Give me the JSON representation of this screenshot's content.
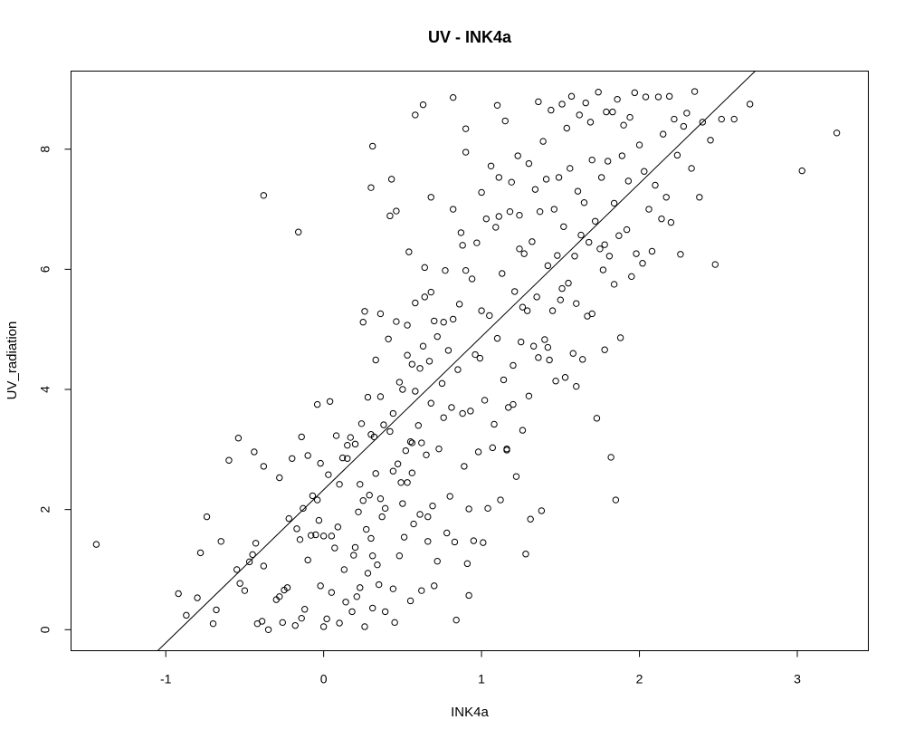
{
  "chart_data": {
    "type": "scatter",
    "title": "UV - INK4a",
    "xlabel": "INK4a",
    "ylabel": "UV_radiation",
    "xlim": [
      -1.6,
      3.45
    ],
    "ylim": [
      -0.35,
      9.3
    ],
    "xticks": [
      -1,
      0,
      1,
      2,
      3
    ],
    "yticks": [
      0,
      2,
      4,
      6,
      8
    ],
    "grid": false,
    "legend": "none",
    "fit_line": {
      "intercept": 2.33,
      "slope": 2.55
    },
    "points": [
      [
        -1.44,
        1.42
      ],
      [
        -0.92,
        0.6
      ],
      [
        -0.87,
        0.24
      ],
      [
        -0.8,
        0.53
      ],
      [
        -0.78,
        1.28
      ],
      [
        -0.74,
        1.88
      ],
      [
        -0.7,
        0.1
      ],
      [
        -0.68,
        0.33
      ],
      [
        -0.65,
        1.47
      ],
      [
        -0.6,
        2.82
      ],
      [
        -0.54,
        3.19
      ],
      [
        -0.55,
        1.0
      ],
      [
        -0.53,
        0.77
      ],
      [
        -0.5,
        0.65
      ],
      [
        -0.47,
        1.13
      ],
      [
        -0.45,
        1.25
      ],
      [
        -0.44,
        2.96
      ],
      [
        -0.43,
        1.44
      ],
      [
        -0.42,
        0.1
      ],
      [
        -0.39,
        0.14
      ],
      [
        -0.38,
        2.72
      ],
      [
        -0.38,
        1.06
      ],
      [
        -0.38,
        7.23
      ],
      [
        -0.35,
        0.0
      ],
      [
        -0.3,
        0.5
      ],
      [
        -0.28,
        0.55
      ],
      [
        -0.28,
        2.53
      ],
      [
        -0.26,
        0.12
      ],
      [
        -0.25,
        0.66
      ],
      [
        -0.23,
        0.7
      ],
      [
        -0.22,
        1.85
      ],
      [
        -0.2,
        2.85
      ],
      [
        -0.18,
        0.07
      ],
      [
        -0.17,
        1.68
      ],
      [
        -0.15,
        1.5
      ],
      [
        -0.14,
        0.19
      ],
      [
        -0.14,
        3.21
      ],
      [
        -0.13,
        2.02
      ],
      [
        -0.12,
        0.34
      ],
      [
        -0.1,
        2.9
      ],
      [
        -0.1,
        1.16
      ],
      [
        -0.08,
        1.57
      ],
      [
        -0.07,
        2.23
      ],
      [
        -0.05,
        1.58
      ],
      [
        -0.04,
        2.16
      ],
      [
        -0.03,
        1.82
      ],
      [
        -0.02,
        2.77
      ],
      [
        -0.02,
        0.73
      ],
      [
        0.0,
        0.05
      ],
      [
        0.0,
        1.56
      ],
      [
        0.02,
        0.18
      ],
      [
        0.03,
        2.58
      ],
      [
        0.04,
        3.8
      ],
      [
        0.05,
        0.62
      ],
      [
        0.05,
        1.56
      ],
      [
        0.07,
        1.36
      ],
      [
        0.08,
        3.23
      ],
      [
        0.09,
        1.71
      ],
      [
        0.1,
        0.11
      ],
      [
        0.1,
        2.42
      ],
      [
        0.12,
        2.86
      ],
      [
        0.13,
        1.0
      ],
      [
        0.14,
        0.46
      ],
      [
        0.15,
        3.07
      ],
      [
        0.15,
        2.85
      ],
      [
        0.17,
        3.2
      ],
      [
        0.18,
        0.3
      ],
      [
        0.19,
        1.24
      ],
      [
        0.2,
        3.09
      ],
      [
        0.2,
        1.37
      ],
      [
        0.21,
        0.55
      ],
      [
        0.22,
        1.96
      ],
      [
        0.23,
        0.7
      ],
      [
        0.23,
        2.42
      ],
      [
        0.24,
        3.43
      ],
      [
        0.25,
        5.12
      ],
      [
        0.25,
        2.15
      ],
      [
        0.26,
        5.3
      ],
      [
        0.27,
        1.67
      ],
      [
        0.28,
        3.87
      ],
      [
        0.28,
        0.94
      ],
      [
        0.29,
        2.24
      ],
      [
        0.3,
        1.52
      ],
      [
        0.3,
        3.25
      ],
      [
        0.31,
        0.36
      ],
      [
        0.31,
        1.23
      ],
      [
        0.32,
        3.21
      ],
      [
        0.33,
        2.6
      ],
      [
        0.34,
        1.08
      ],
      [
        0.35,
        0.75
      ],
      [
        0.36,
        2.18
      ],
      [
        0.37,
        1.88
      ],
      [
        0.38,
        3.41
      ],
      [
        0.39,
        2.02
      ],
      [
        0.41,
        4.84
      ],
      [
        0.42,
        3.3
      ],
      [
        0.42,
        6.89
      ],
      [
        0.43,
        7.5
      ],
      [
        0.44,
        0.68
      ],
      [
        0.44,
        3.6
      ],
      [
        0.45,
        0.12
      ],
      [
        0.46,
        5.13
      ],
      [
        0.47,
        2.76
      ],
      [
        0.48,
        1.23
      ],
      [
        0.48,
        4.12
      ],
      [
        0.5,
        4.0
      ],
      [
        0.5,
        2.1
      ],
      [
        0.51,
        1.54
      ],
      [
        0.52,
        2.98
      ],
      [
        0.53,
        2.45
      ],
      [
        0.53,
        4.57
      ],
      [
        0.54,
        6.29
      ],
      [
        0.55,
        0.48
      ],
      [
        0.55,
        3.13
      ],
      [
        0.56,
        4.42
      ],
      [
        0.56,
        2.61
      ],
      [
        0.57,
        1.76
      ],
      [
        0.58,
        3.97
      ],
      [
        0.58,
        5.44
      ],
      [
        0.6,
        3.4
      ],
      [
        0.61,
        1.92
      ],
      [
        0.61,
        4.35
      ],
      [
        0.62,
        3.11
      ],
      [
        0.62,
        0.65
      ],
      [
        0.63,
        4.72
      ],
      [
        0.64,
        5.54
      ],
      [
        0.65,
        2.91
      ],
      [
        0.66,
        1.47
      ],
      [
        0.66,
        1.88
      ],
      [
        0.67,
        4.47
      ],
      [
        0.68,
        5.62
      ],
      [
        0.69,
        2.06
      ],
      [
        0.7,
        0.73
      ],
      [
        0.72,
        4.88
      ],
      [
        0.72,
        1.14
      ],
      [
        0.73,
        3.01
      ],
      [
        0.75,
        4.1
      ],
      [
        0.76,
        3.53
      ],
      [
        0.77,
        5.98
      ],
      [
        0.78,
        1.61
      ],
      [
        0.79,
        4.65
      ],
      [
        0.8,
        2.22
      ],
      [
        0.81,
        3.7
      ],
      [
        0.82,
        5.17
      ],
      [
        0.82,
        7.0
      ],
      [
        0.83,
        1.46
      ],
      [
        0.84,
        0.16
      ],
      [
        0.85,
        4.33
      ],
      [
        0.86,
        5.42
      ],
      [
        0.87,
        6.61
      ],
      [
        0.88,
        3.6
      ],
      [
        0.89,
        2.72
      ],
      [
        0.9,
        7.95
      ],
      [
        0.9,
        5.98
      ],
      [
        0.91,
        1.1
      ],
      [
        0.92,
        0.57
      ],
      [
        0.93,
        3.64
      ],
      [
        0.94,
        5.84
      ],
      [
        0.95,
        1.48
      ],
      [
        0.96,
        4.58
      ],
      [
        0.97,
        6.44
      ],
      [
        0.98,
        2.96
      ],
      [
        0.99,
        4.52
      ],
      [
        1.0,
        5.31
      ],
      [
        1.01,
        1.45
      ],
      [
        1.02,
        3.82
      ],
      [
        1.03,
        6.84
      ],
      [
        1.04,
        2.02
      ],
      [
        1.05,
        5.23
      ],
      [
        1.06,
        7.72
      ],
      [
        1.07,
        3.03
      ],
      [
        1.08,
        3.42
      ],
      [
        1.09,
        6.7
      ],
      [
        1.1,
        4.85
      ],
      [
        1.11,
        7.53
      ],
      [
        1.12,
        2.16
      ],
      [
        1.13,
        5.93
      ],
      [
        1.14,
        4.16
      ],
      [
        1.15,
        8.47
      ],
      [
        1.16,
        3.01
      ],
      [
        1.17,
        3.7
      ],
      [
        1.18,
        6.96
      ],
      [
        1.19,
        7.45
      ],
      [
        1.2,
        4.4
      ],
      [
        1.21,
        5.63
      ],
      [
        1.22,
        2.55
      ],
      [
        1.23,
        7.89
      ],
      [
        1.24,
        6.34
      ],
      [
        1.25,
        4.79
      ],
      [
        1.26,
        3.32
      ],
      [
        1.27,
        6.26
      ],
      [
        1.28,
        1.26
      ],
      [
        1.29,
        5.31
      ],
      [
        1.3,
        7.76
      ],
      [
        1.31,
        1.84
      ],
      [
        1.32,
        6.46
      ],
      [
        1.33,
        4.72
      ],
      [
        1.34,
        7.33
      ],
      [
        1.35,
        5.54
      ],
      [
        1.36,
        4.53
      ],
      [
        1.37,
        6.96
      ],
      [
        1.38,
        1.98
      ],
      [
        1.39,
        8.13
      ],
      [
        1.4,
        4.83
      ],
      [
        1.41,
        7.5
      ],
      [
        1.42,
        6.06
      ],
      [
        1.43,
        4.49
      ],
      [
        1.44,
        8.65
      ],
      [
        1.45,
        5.31
      ],
      [
        1.46,
        7.0
      ],
      [
        1.47,
        4.14
      ],
      [
        1.48,
        6.23
      ],
      [
        1.49,
        7.53
      ],
      [
        1.5,
        5.49
      ],
      [
        1.51,
        8.75
      ],
      [
        1.52,
        6.71
      ],
      [
        1.53,
        4.2
      ],
      [
        1.54,
        8.35
      ],
      [
        1.55,
        5.77
      ],
      [
        1.56,
        7.68
      ],
      [
        1.57,
        8.88
      ],
      [
        1.58,
        4.6
      ],
      [
        1.59,
        6.22
      ],
      [
        1.6,
        5.43
      ],
      [
        1.61,
        7.3
      ],
      [
        1.62,
        8.57
      ],
      [
        1.63,
        6.57
      ],
      [
        1.64,
        4.5
      ],
      [
        1.65,
        7.11
      ],
      [
        1.66,
        8.77
      ],
      [
        1.67,
        5.22
      ],
      [
        1.68,
        6.45
      ],
      [
        1.69,
        8.45
      ],
      [
        1.7,
        7.82
      ],
      [
        1.72,
        6.8
      ],
      [
        1.73,
        3.52
      ],
      [
        1.74,
        8.95
      ],
      [
        1.75,
        6.34
      ],
      [
        1.76,
        7.53
      ],
      [
        1.77,
        5.99
      ],
      [
        1.78,
        4.66
      ],
      [
        1.79,
        8.62
      ],
      [
        1.8,
        7.8
      ],
      [
        1.81,
        6.22
      ],
      [
        1.82,
        2.87
      ],
      [
        1.83,
        8.62
      ],
      [
        1.84,
        7.1
      ],
      [
        1.85,
        2.16
      ],
      [
        1.86,
        8.83
      ],
      [
        1.87,
        6.56
      ],
      [
        1.88,
        4.86
      ],
      [
        1.89,
        7.89
      ],
      [
        1.9,
        8.4
      ],
      [
        1.92,
        6.66
      ],
      [
        1.93,
        7.47
      ],
      [
        1.94,
        8.53
      ],
      [
        1.95,
        5.88
      ],
      [
        1.97,
        8.94
      ],
      [
        1.98,
        6.26
      ],
      [
        2.0,
        8.07
      ],
      [
        2.02,
        6.1
      ],
      [
        2.03,
        7.63
      ],
      [
        2.04,
        8.87
      ],
      [
        2.06,
        7.0
      ],
      [
        2.08,
        6.3
      ],
      [
        2.1,
        7.4
      ],
      [
        2.12,
        8.87
      ],
      [
        2.14,
        6.84
      ],
      [
        2.15,
        8.25
      ],
      [
        2.17,
        7.2
      ],
      [
        2.19,
        8.88
      ],
      [
        2.2,
        6.78
      ],
      [
        2.22,
        8.5
      ],
      [
        2.24,
        7.9
      ],
      [
        2.26,
        6.25
      ],
      [
        2.28,
        8.38
      ],
      [
        2.3,
        8.6
      ],
      [
        2.33,
        7.68
      ],
      [
        2.35,
        8.96
      ],
      [
        2.38,
        7.2
      ],
      [
        2.4,
        8.45
      ],
      [
        2.45,
        8.15
      ],
      [
        2.48,
        6.08
      ],
      [
        2.52,
        8.5
      ],
      [
        2.6,
        8.5
      ],
      [
        2.7,
        8.75
      ],
      [
        3.03,
        7.64
      ],
      [
        3.25,
        8.27
      ],
      [
        -0.16,
        6.62
      ],
      [
        0.3,
        7.36
      ],
      [
        0.31,
        8.05
      ],
      [
        0.58,
        8.57
      ],
      [
        0.63,
        8.74
      ],
      [
        0.82,
        8.86
      ],
      [
        0.9,
        8.34
      ],
      [
        1.1,
        8.73
      ],
      [
        0.36,
        3.88
      ],
      [
        0.68,
        7.2
      ],
      [
        -0.04,
        3.75
      ],
      [
        0.26,
        0.05
      ],
      [
        0.39,
        0.3
      ],
      [
        0.56,
        3.11
      ],
      [
        0.92,
        2.01
      ],
      [
        0.44,
        2.64
      ],
      [
        0.53,
        5.07
      ],
      [
        0.64,
        6.03
      ],
      [
        0.49,
        2.45
      ],
      [
        0.7,
        5.14
      ],
      [
        1.16,
        2.99
      ],
      [
        1.2,
        3.75
      ],
      [
        1.26,
        5.37
      ],
      [
        1.3,
        3.89
      ],
      [
        1.42,
        4.7
      ],
      [
        1.51,
        5.68
      ],
      [
        1.6,
        4.05
      ],
      [
        1.7,
        5.26
      ],
      [
        1.78,
        6.41
      ],
      [
        1.84,
        5.75
      ],
      [
        0.33,
        4.49
      ],
      [
        0.36,
        5.26
      ],
      [
        0.46,
        6.97
      ],
      [
        0.68,
        3.77
      ],
      [
        0.76,
        5.12
      ],
      [
        0.88,
        6.4
      ],
      [
        1.0,
        7.28
      ],
      [
        1.11,
        6.88
      ],
      [
        1.24,
        6.9
      ],
      [
        1.36,
        8.79
      ]
    ]
  }
}
